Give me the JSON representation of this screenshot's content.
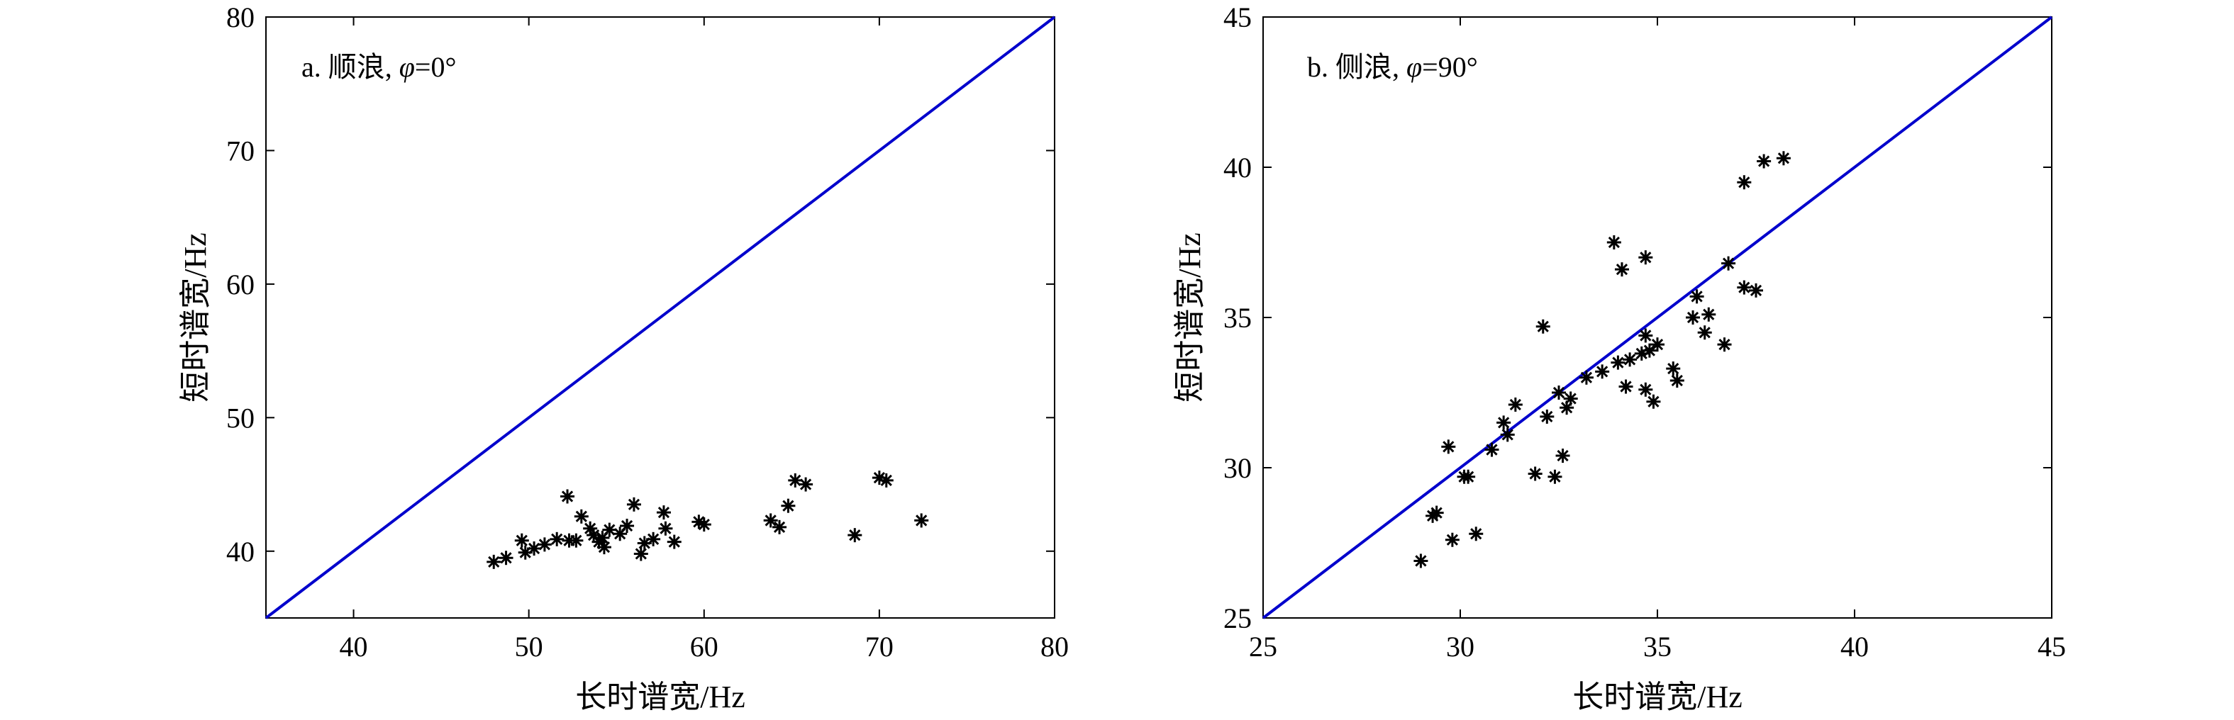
{
  "chart_data": [
    {
      "type": "scatter",
      "annotation": "a. 顺浪, φ=0°",
      "annotation_parts": {
        "prefix": "a. 顺浪, ",
        "symbol": "φ",
        "suffix": "=0°"
      },
      "xlabel": "长时谱宽/Hz",
      "ylabel": "短时谱宽/Hz",
      "xlim": [
        35,
        80
      ],
      "ylim": [
        35,
        80
      ],
      "xticks": [
        40,
        50,
        60,
        70,
        80
      ],
      "yticks": [
        40,
        50,
        60,
        70,
        80
      ],
      "grid": false,
      "marker": "*",
      "marker_color": "#000000",
      "reference_line": {
        "x": [
          35,
          80
        ],
        "y": [
          35,
          80
        ],
        "color": "#0000cc"
      },
      "points": [
        [
          48.0,
          39.2
        ],
        [
          48.7,
          39.5
        ],
        [
          49.6,
          40.8
        ],
        [
          49.8,
          39.9
        ],
        [
          50.3,
          40.2
        ],
        [
          50.9,
          40.5
        ],
        [
          51.6,
          40.9
        ],
        [
          52.2,
          44.1
        ],
        [
          52.3,
          40.8
        ],
        [
          52.7,
          40.8
        ],
        [
          53.0,
          42.6
        ],
        [
          53.5,
          41.7
        ],
        [
          53.7,
          41.2
        ],
        [
          54.0,
          40.7
        ],
        [
          54.2,
          41.0
        ],
        [
          54.3,
          40.3
        ],
        [
          54.6,
          41.6
        ],
        [
          55.2,
          41.3
        ],
        [
          55.6,
          41.9
        ],
        [
          56.0,
          43.5
        ],
        [
          56.4,
          39.8
        ],
        [
          56.6,
          40.6
        ],
        [
          57.1,
          40.9
        ],
        [
          57.7,
          42.9
        ],
        [
          57.8,
          41.7
        ],
        [
          58.3,
          40.7
        ],
        [
          59.7,
          42.2
        ],
        [
          60.0,
          42.0
        ],
        [
          63.8,
          42.3
        ],
        [
          64.3,
          41.8
        ],
        [
          64.8,
          43.4
        ],
        [
          65.2,
          45.3
        ],
        [
          65.8,
          45.0
        ],
        [
          68.6,
          41.2
        ],
        [
          70.0,
          45.5
        ],
        [
          70.4,
          45.3
        ],
        [
          72.4,
          42.3
        ]
      ]
    },
    {
      "type": "scatter",
      "annotation": "b. 侧浪, φ=90°",
      "annotation_parts": {
        "prefix": "b. 侧浪, ",
        "symbol": "φ",
        "suffix": "=90°"
      },
      "xlabel": "长时谱宽/Hz",
      "ylabel": "短时谱宽/Hz",
      "xlim": [
        25,
        45
      ],
      "ylim": [
        25,
        45
      ],
      "xticks": [
        25,
        30,
        35,
        40,
        45
      ],
      "yticks": [
        25,
        30,
        35,
        40,
        45
      ],
      "grid": false,
      "marker": "*",
      "marker_color": "#000000",
      "reference_line": {
        "x": [
          25,
          45
        ],
        "y": [
          25,
          45
        ],
        "color": "#0000cc"
      },
      "points": [
        [
          29.0,
          26.9
        ],
        [
          29.3,
          28.4
        ],
        [
          29.4,
          28.5
        ],
        [
          29.7,
          30.7
        ],
        [
          29.8,
          27.6
        ],
        [
          30.1,
          29.7
        ],
        [
          30.2,
          29.7
        ],
        [
          30.4,
          27.8
        ],
        [
          30.8,
          30.6
        ],
        [
          31.1,
          31.5
        ],
        [
          31.2,
          31.1
        ],
        [
          31.4,
          32.1
        ],
        [
          31.9,
          29.8
        ],
        [
          32.1,
          34.7
        ],
        [
          32.2,
          31.7
        ],
        [
          32.4,
          29.7
        ],
        [
          32.5,
          32.5
        ],
        [
          32.6,
          30.4
        ],
        [
          32.7,
          32.0
        ],
        [
          32.8,
          32.3
        ],
        [
          33.2,
          33.0
        ],
        [
          33.6,
          33.2
        ],
        [
          33.9,
          37.5
        ],
        [
          34.0,
          33.5
        ],
        [
          34.1,
          36.6
        ],
        [
          34.2,
          32.7
        ],
        [
          34.3,
          33.6
        ],
        [
          34.6,
          33.8
        ],
        [
          34.7,
          37.0
        ],
        [
          34.7,
          34.4
        ],
        [
          34.7,
          32.6
        ],
        [
          34.8,
          33.9
        ],
        [
          34.9,
          32.2
        ],
        [
          35.0,
          34.1
        ],
        [
          35.4,
          33.3
        ],
        [
          35.5,
          32.9
        ],
        [
          35.9,
          35.0
        ],
        [
          36.0,
          35.7
        ],
        [
          36.2,
          34.5
        ],
        [
          36.3,
          35.1
        ],
        [
          36.7,
          34.1
        ],
        [
          36.8,
          36.8
        ],
        [
          37.2,
          39.5
        ],
        [
          37.2,
          36.0
        ],
        [
          37.5,
          35.9
        ],
        [
          37.7,
          40.2
        ],
        [
          38.2,
          40.3
        ]
      ]
    }
  ]
}
